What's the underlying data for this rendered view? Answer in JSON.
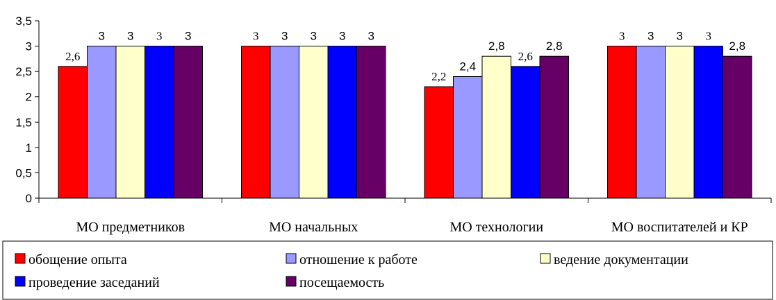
{
  "chart_data": {
    "type": "bar",
    "categories": [
      "МО предметников",
      "МО начальных",
      "МО технологии",
      "МО воспитателей и КР"
    ],
    "series": [
      {
        "name": "обощение опыта",
        "color": "#ff0000",
        "values": [
          2.6,
          3,
          2.2,
          3
        ],
        "labels": [
          "2,6",
          "3",
          "2,2",
          "3"
        ]
      },
      {
        "name": "отношение к работе",
        "color": "#9999ff",
        "values": [
          3,
          3,
          2.4,
          3
        ],
        "labels": [
          "3",
          "3",
          "2,4",
          "3"
        ]
      },
      {
        "name": "ведение документации",
        "color": "#ffffcc",
        "values": [
          3,
          3,
          2.8,
          3
        ],
        "labels": [
          "3",
          "3",
          "2,8",
          "3"
        ]
      },
      {
        "name": "проведение заседаний",
        "color": "#0000ff",
        "values": [
          3,
          3,
          2.6,
          3
        ],
        "labels": [
          "3",
          "3",
          "2,6",
          "3"
        ]
      },
      {
        "name": "посещаемость",
        "color": "#660066",
        "values": [
          3,
          3,
          2.8,
          2.8
        ],
        "labels": [
          "3",
          "3",
          "2,8",
          "2,8"
        ]
      }
    ],
    "ylim": [
      0,
      3.5
    ],
    "yticks": [
      0,
      0.5,
      1,
      1.5,
      2,
      2.5,
      3,
      3.5
    ],
    "ytick_labels": [
      "0",
      "0,5",
      "1",
      "1,5",
      "2",
      "2,5",
      "3",
      "3,5"
    ],
    "title": "",
    "xlabel": "",
    "ylabel": "",
    "grid": false,
    "legend_position": "bottom"
  }
}
